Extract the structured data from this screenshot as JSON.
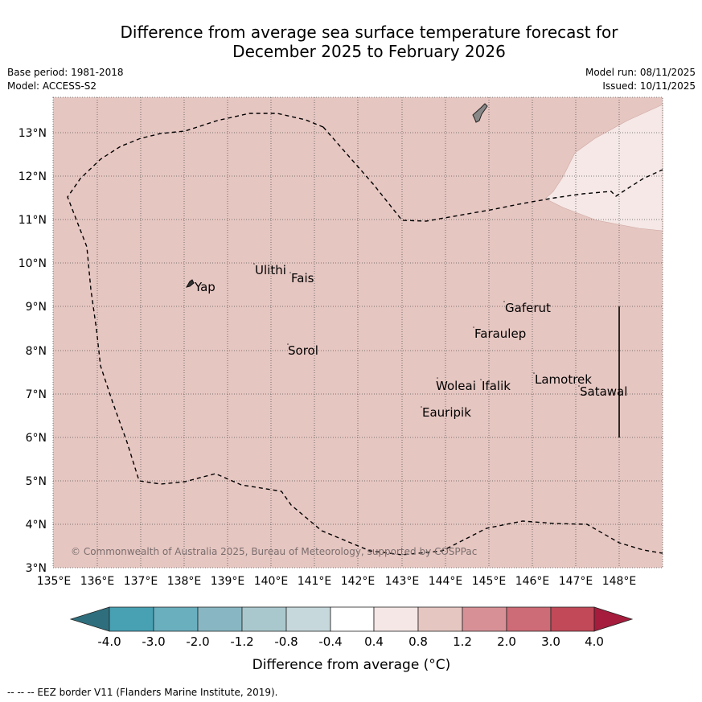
{
  "header": {
    "title_line1": "Difference from average sea surface temperature forecast for",
    "title_line2": "December 2025 to February 2026",
    "base_period": "Base period: 1981-2018",
    "model": "Model: ACCESS-S2",
    "model_run": "Model run: 08/11/2025",
    "issued": "Issued: 10/11/2025"
  },
  "map": {
    "longitude_labels": [
      "135°E",
      "136°E",
      "137°E",
      "138°E",
      "139°E",
      "140°E",
      "141°E",
      "142°E",
      "143°E",
      "144°E",
      "145°E",
      "146°E",
      "147°E",
      "148°E"
    ],
    "latitude_labels": [
      "13°N",
      "12°N",
      "11°N",
      "10°N",
      "9°N",
      "8°N",
      "7°N",
      "6°N",
      "5°N",
      "4°N",
      "3°N"
    ],
    "extent": {
      "lon_min": 135,
      "lon_max": 149,
      "lat_min": 3,
      "lat_max": 13.8
    },
    "background_anomaly_range": "0.8 to 1.2",
    "northeast_anomaly_range": "0.4 to 0.8",
    "places": [
      "Yap",
      "Ulithi",
      "Fais",
      "Gaferut",
      "Faraulep",
      "Sorol",
      "Lamotrek",
      "Woleai",
      "Ifalik",
      "Satawal",
      "Eauripik"
    ],
    "credit": "© Commonwealth of Australia 2025, Bureau of Meteorology, supported by COSPPac",
    "colors": {
      "background_fill": "#e6c6c1",
      "northeast_fill": "#f5e8e6",
      "grid": "#555555",
      "eez_line": "#000000"
    }
  },
  "colorbar": {
    "tick_labels": [
      "-4.0",
      "-3.0",
      "-2.0",
      "-1.2",
      "-0.8",
      "-0.4",
      "0.4",
      "0.8",
      "1.2",
      "2.0",
      "3.0",
      "4.0"
    ],
    "colors": [
      "#2f6f7d",
      "#47a1b3",
      "#6aafbe",
      "#88b7c3",
      "#a9c8ce",
      "#c6d8dc",
      "#ffffff",
      "#f4e7e5",
      "#e6c6c1",
      "#d79196",
      "#cd6b76",
      "#c14958",
      "#a51c3c"
    ],
    "label": "Difference from average (°C)"
  },
  "footer": {
    "eez_legend": "--  --  -- EEZ border V11 (Flanders Marine Institute, 2019)."
  }
}
